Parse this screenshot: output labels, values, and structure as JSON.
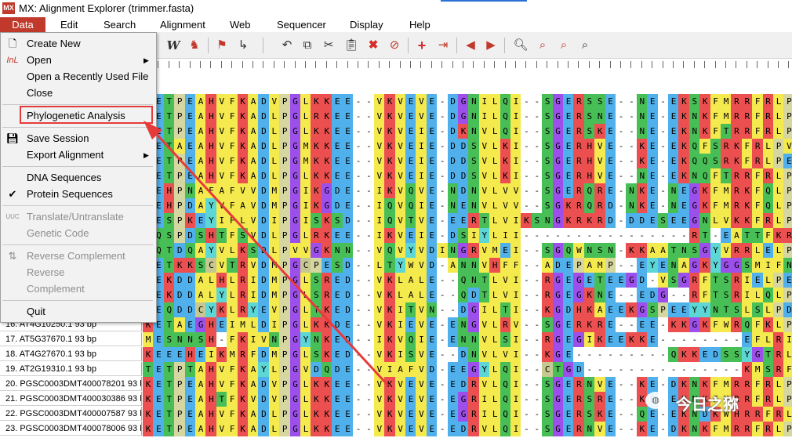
{
  "window": {
    "title": "MX: Alignment Explorer (trimmer.fasta)",
    "app_icon": "MX"
  },
  "menubar": [
    "Data",
    "Edit",
    "Search",
    "Alignment",
    "Web",
    "Sequencer",
    "Display",
    "Help"
  ],
  "toolbar": {
    "icons": [
      "w-icon",
      "bird-icon",
      "flag-icon",
      "cursor-icon",
      "undo-icon",
      "copy-icon",
      "cut-icon",
      "paste-icon",
      "delete-icon",
      "clear-icon",
      "add-icon",
      "insert-icon",
      "prev-icon",
      "next-icon",
      "zoom-icon",
      "find-prev-icon",
      "find-next-icon",
      "find-motif-icon"
    ]
  },
  "data_menu": {
    "items": [
      {
        "label": "Create New",
        "icon": "document-icon",
        "enabled": true
      },
      {
        "label": "Open",
        "icon": "open-icon",
        "enabled": true,
        "submenu": true
      },
      {
        "label": "Open a Recently Used File",
        "enabled": true
      },
      {
        "label": "Close",
        "enabled": true
      },
      {
        "label": "Phylogenetic Analysis",
        "enabled": true,
        "highlighted": true
      },
      {
        "label": "Save Session",
        "icon": "save-icon",
        "enabled": true
      },
      {
        "label": "Export Alignment",
        "enabled": true,
        "submenu": true
      },
      {
        "label": "DNA Sequences",
        "enabled": true
      },
      {
        "label": "Protein Sequences",
        "enabled": true,
        "checked": true
      },
      {
        "label": "Translate/Untranslate",
        "icon": "translate-icon",
        "enabled": false
      },
      {
        "label": "Genetic Code",
        "enabled": false
      },
      {
        "label": "Reverse Complement",
        "icon": "reverse-complement-icon",
        "enabled": false
      },
      {
        "label": "Reverse",
        "enabled": false
      },
      {
        "label": "Complement",
        "enabled": false
      },
      {
        "label": "Quit",
        "enabled": true
      }
    ]
  },
  "sequences": [
    {
      "name": "",
      "seq": "KETPEAHVFKADVPGLKKEE--VKVEVE-DGNILQI--SGERSSE--NE-EKSKFMRRFRLPENA-KVE"
    },
    {
      "name": "",
      "seq": "KETPEAHVFKADLPGLRKEE--VKVEVE-DGNILQI--SGERSNE--NE-EKNKFMRRFRLPENA-KME"
    },
    {
      "name": "",
      "seq": "KETPEAHVFKADLPGLKKEE--VKVEIE-DKNVLQI--SGERSKE--NE-EKNKFTRRFRLPENA-KME"
    },
    {
      "name": "",
      "seq": "KETAEAHVFKADLPGMKKEE--VKVEIE-DDSVLKI--SGERHVE--KE-EKQFSRKFRLPVNV-KMD"
    },
    {
      "name": "",
      "seq": "KETPEAHVFKADLPGMKKEE--VKVEIE-DDSVLKI--SGERHVE--KE-EKQQSRKFRLPENV-KMD"
    },
    {
      "name": "",
      "seq": "KETPEAHVFKADLPGLKKEE--VKVEIE-DDSVLKI--SGERHVE--NE-EKNQFTRRFRLPENA-KME"
    },
    {
      "name": "",
      "seq": "KEHPNAFAFVVDMPGIKGDE--IKVQVE-NDNVLVV--SGERQRE-NKE-NEGKFMRKFQLPENA-DLD"
    },
    {
      "name": "",
      "seq": "KEHPDAYVFAVDMPGIKGDE--IQVQIE-NENVLVV--SGKRQRD-NKE-NEGKFMRKFQLPDNA-DMA"
    },
    {
      "name": "",
      "seq": "KESPKEYIFLVDIPGISKSD--IQVTVE-EERTLVIKSNGKRKRD-DDESEEGNLVKKFRLPEDA-DMA"
    },
    {
      "name": "",
      "seq": "KQSPDSHTFSVDLPGLRKEE--IKVEIE-DSIYLII----------------RT-EATTFKRKFRLPEDS-DMI"
    },
    {
      "name": "",
      "seq": "KQTDQAYVLKSDLPVVGKNN--VQVYVDINGRVMEI--SGQWNSN-KKAATNSGYVRRLELPSDA-DAK"
    },
    {
      "name": "",
      "seq": "KETKKSCVTRVDMPGCPESD--LTYWVD-ANNVHFF--ADEPAMP--EYENAGKYGGSMIFNPEAYDVK"
    },
    {
      "name": "",
      "seq": "KEKDDALHLRIDMPGLSRED--VKLALE--QNTLVI--RGEGETEEGD-VSGRFTSRIELPEKVYKTD"
    },
    {
      "name": "",
      "seq": "KEKDDALYLRIDMPGLSRED--VKLALE--QDTLVI--RGEGKNE--EDG--RFTSRILQLPDKIYKID"
    },
    {
      "name": "",
      "seq": "KEQDDCYKLRYEVPGLTKED--VKITVN--DGILTI--KGDHKAEEKGSPEEYYNTSLSLPDDA-KVE"
    },
    {
      "name": "16. AT4G10250.1 93 bp",
      "seq": "KETAEGHEIMLDIPGLKKDE--VKIEVE-ENGVLRV--SGERKRE--EE-KKGKFWRQFKLPDNV-DME"
    },
    {
      "name": "17. AT5G37670.1 93 bp",
      "seq": "MESNNSH-FKIVNPGYNKED--IKVQIE-ENNVLSI--RGEGIKEEKKE--------EFLRIELPEKVKTE"
    },
    {
      "name": "18. AT4G27670.1 93 bp",
      "seq": "KEEEHEIKMRFDMPGLSKED--VKISVE--DNVLVI--KGE---------QKKEDSSYGTRLQPDNC-EKD"
    },
    {
      "name": "19. AT2G19310.1 93 bp",
      "seq": "TETPTAHVFKAYLPGVDQDE--VIAFVD-EEGYLQI--CTGD---------------KMSRFKLPNNA-LTD"
    },
    {
      "name": "20. PGSC0003DMT400078201 93 bp",
      "seq": "KETPEAHVFKADVPGLKKEE--VKVEVE-EDRVLQI--SGERNVE--KE-DKNKFMRRFRLPENA-KIE"
    },
    {
      "name": "21. PGSC0003DMT400030386 93 bp",
      "seq": "KETPEAHTFKVDVPGLKKEE--VKVEVE-EGRILQI--SGERSRE--KE-EKNKFMRRFRLPENA-KTG"
    },
    {
      "name": "22. PGSC0003DMT400007587 93 bp",
      "seq": "KETPEAHVFKADLPGLKKEE--VKVEVE-EGRILQI--SGERSKE--QE-EKNDKWHRRFRLPENA-KVE"
    },
    {
      "name": "23. PGSC0003DMT400078006 93 bp",
      "seq": "KETPEAHVFKADLPGLKKEE--VKVEVE-EDRVLQI--SGERNVE--KE-DKNKFMRRFRLPENA-KIE"
    }
  ],
  "residue_colors": {
    "A": "#f5ea4d",
    "V": "#f5ea4d",
    "L": "#f5ea4d",
    "I": "#f5ea4d",
    "M": "#f5ea4d",
    "F": "#f5ea4d",
    "W": "#f5ea4d",
    "C": "#c7c791",
    "K": "#ec4f4f",
    "R": "#ec4f4f",
    "H": "#ec4f4f",
    "D": "#4fb0ec",
    "E": "#4fb0ec",
    "S": "#48bf56",
    "T": "#48bf56",
    "N": "#48bf56",
    "Q": "#48bf56",
    "G": "#9d4fec",
    "P": "#d6d6a0",
    "Y": "#5dd6d6",
    "-": "#ffffff"
  },
  "watermark": "今日之猕"
}
